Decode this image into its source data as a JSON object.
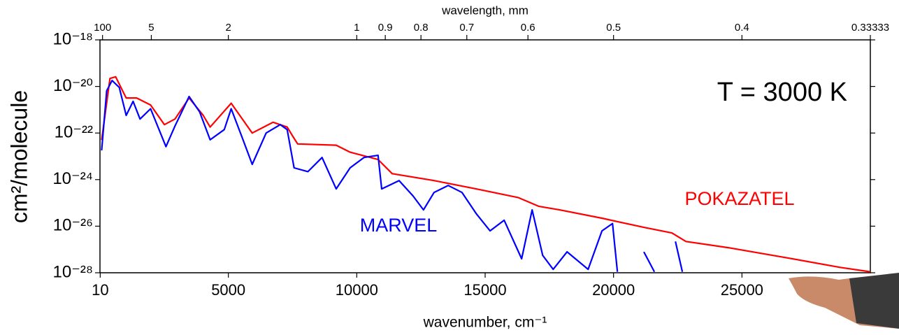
{
  "chart_data": {
    "type": "line",
    "xlabel": "wavenumber, cm⁻¹",
    "ylabel": "cm²/molecule",
    "top_xlabel": "wavelength, mm",
    "annotations": [
      "T = 3000 K"
    ],
    "xlim": [
      0,
      30000
    ],
    "xticks": [
      10,
      5000,
      10000,
      15000,
      20000,
      25000
    ],
    "top_xticks": [
      100,
      5,
      2,
      1,
      0.9,
      0.8,
      0.7,
      0.6,
      0.5,
      0.4,
      0.33333
    ],
    "yscale": "log",
    "ylim": [
      1e-28,
      1e-18
    ],
    "yticks": [
      {
        "value": 1e-18,
        "label": "10⁻¹⁸"
      },
      {
        "value": 1e-20,
        "label": "10⁻²⁰"
      },
      {
        "value": 1e-22,
        "label": "10⁻²²"
      },
      {
        "value": 1e-24,
        "label": "10⁻²⁴"
      },
      {
        "value": 1e-26,
        "label": "10⁻²⁶"
      },
      {
        "value": 1e-28,
        "label": "10⁻²⁸"
      }
    ],
    "series": [
      {
        "name": "POKAZATEL",
        "color": "#ff0000",
        "x": [
          65,
          390,
          610,
          1020,
          1430,
          1970,
          2510,
          2920,
          3470,
          4020,
          4290,
          5110,
          5930,
          6740,
          7290,
          7510,
          7700,
          9200,
          9740,
          10830,
          11380,
          13010,
          14650,
          16280,
          17100,
          17900,
          19550,
          21180,
          22270,
          22820,
          24460,
          26640,
          28820,
          30000
        ],
        "values": [
          5e-23,
          2.2e-20,
          2.6e-20,
          3.2e-21,
          3.2e-21,
          1.6e-21,
          2.3e-22,
          4e-22,
          3.2e-21,
          5.7e-22,
          1.8e-22,
          1.9e-21,
          1e-22,
          2.9e-22,
          1.8e-22,
          7.2e-23,
          3.4e-23,
          3e-23,
          1.5e-23,
          7.3e-24,
          1.8e-24,
          9.1e-25,
          4e-25,
          1.7e-25,
          7.1e-26,
          5e-26,
          2.2e-26,
          8.9e-27,
          5.1e-27,
          2.2e-27,
          1.2e-27,
          4.6e-28,
          1.7e-28,
          1.1e-28
        ]
      },
      {
        "name": "MARVEL",
        "color": "#0000ff",
        "x": [
          65,
          260,
          470,
          750,
          1020,
          1290,
          1560,
          1970,
          2570,
          2920,
          3470,
          3880,
          4290,
          4840,
          5110,
          5520,
          5930,
          6470,
          7020,
          7290,
          7560,
          8100,
          8650,
          9200,
          9740,
          10280,
          10830,
          10970,
          11650,
          12190,
          12600,
          13010,
          13560,
          14100,
          14650,
          15190,
          15740,
          16420,
          16830,
          17240,
          17650,
          18190,
          19010,
          19550,
          19960,
          20150,
          null,
          21180,
          21590,
          null,
          22410,
          22680
        ],
        "values": [
          1.8e-23,
          6.5e-21,
          1.8e-20,
          9.1e-21,
          5.7e-22,
          2.3e-21,
          4e-22,
          1.1e-21,
          2.6e-23,
          2e-22,
          3.7e-21,
          8.1e-22,
          5.1e-23,
          1.4e-22,
          1.1e-21,
          7.2e-23,
          4.5e-24,
          1e-22,
          2.3e-22,
          1.4e-22,
          3.2e-24,
          2.2e-24,
          8.9e-24,
          4e-25,
          3.2e-24,
          8.9e-24,
          1.1e-23,
          4e-25,
          9.1e-25,
          2e-25,
          5e-26,
          2.8e-25,
          5.6e-25,
          2.8e-25,
          3.5e-26,
          6.3e-27,
          1.8e-26,
          4e-28,
          5e-26,
          5.6e-28,
          1.4e-28,
          7.9e-28,
          1.4e-28,
          6.3e-27,
          1.3e-26,
          1.1e-28,
          null,
          7.9e-28,
          1.1e-28,
          null,
          2.2e-27,
          1.1e-28
        ]
      }
    ]
  }
}
